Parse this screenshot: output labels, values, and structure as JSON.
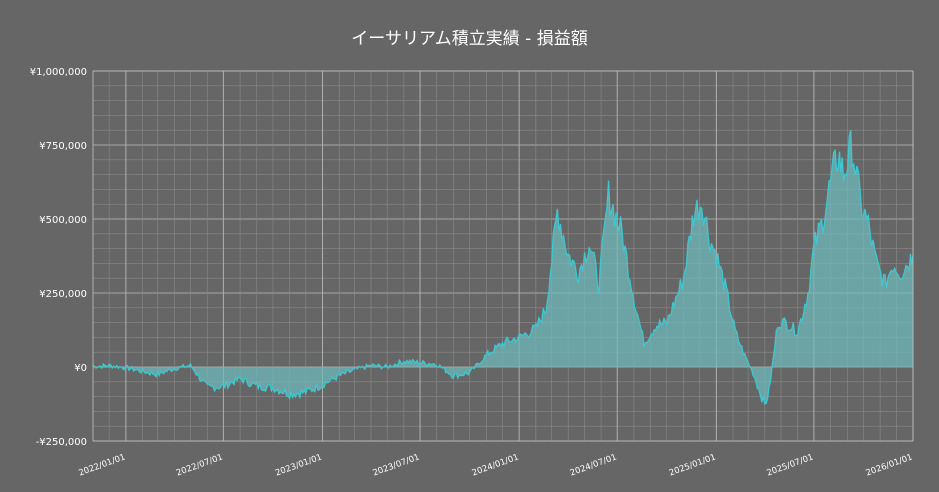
{
  "chart_data": {
    "type": "area",
    "title": "イーサリアム積立実績 - 損益額",
    "xlabel": "",
    "ylabel": "",
    "ylim": [
      -250000,
      1000000
    ],
    "xlim": [
      "2021-11-01",
      "2026-01-01"
    ],
    "yticks": [
      {
        "value": 1000000,
        "label": "¥1,000,000"
      },
      {
        "value": 750000,
        "label": "¥750,000"
      },
      {
        "value": 500000,
        "label": "¥500,000"
      },
      {
        "value": 250000,
        "label": "¥250,000"
      },
      {
        "value": 0,
        "label": "¥0"
      },
      {
        "value": -250000,
        "label": "-¥250,000"
      }
    ],
    "xticks": [
      {
        "date": "2022-01-01",
        "label": "2022/01/01"
      },
      {
        "date": "2022-07-01",
        "label": "2022/07/01"
      },
      {
        "date": "2023-01-01",
        "label": "2023/01/01"
      },
      {
        "date": "2023-07-01",
        "label": "2023/07/01"
      },
      {
        "date": "2024-01-01",
        "label": "2024/01/01"
      },
      {
        "date": "2024-07-01",
        "label": "2024/07/01"
      },
      {
        "date": "2025-01-01",
        "label": "2025/01/01"
      },
      {
        "date": "2025-07-01",
        "label": "2025/07/01"
      },
      {
        "date": "2026-01-01",
        "label": "2026/01/01"
      }
    ],
    "grid": true,
    "colors": {
      "background": "#666666",
      "line": "#3ec7cf",
      "fill": "#6fb9bc",
      "grid": "#8a8a8a"
    },
    "series": [
      {
        "x": [
          "2021-11-01",
          "2021-12-01",
          "2022-01-01",
          "2022-02-01",
          "2022-03-01",
          "2022-04-01",
          "2022-05-01",
          "2022-06-01",
          "2022-07-01",
          "2022-08-01",
          "2022-09-01",
          "2022-10-01",
          "2022-11-01",
          "2022-12-01",
          "2023-01-01",
          "2023-02-01",
          "2023-03-01",
          "2023-04-01",
          "2023-05-01",
          "2023-06-01",
          "2023-07-01",
          "2023-08-01",
          "2023-09-01",
          "2023-10-01",
          "2023-11-01",
          "2023-12-01",
          "2024-01-01",
          "2024-02-01",
          "2024-02-20",
          "2024-03-12",
          "2024-04-01",
          "2024-04-20",
          "2024-05-10",
          "2024-05-28",
          "2024-06-15",
          "2024-07-10",
          "2024-08-05",
          "2024-08-20",
          "2024-09-10",
          "2024-10-01",
          "2024-11-01",
          "2024-11-20",
          "2024-12-05",
          "2024-12-20",
          "2025-01-01",
          "2025-01-20",
          "2025-02-05",
          "2025-02-20",
          "2025-03-10",
          "2025-04-01",
          "2025-04-09",
          "2025-04-25",
          "2025-05-10",
          "2025-06-01",
          "2025-06-20",
          "2025-07-01",
          "2025-07-15",
          "2025-08-01",
          "2025-08-15",
          "2025-08-25",
          "2025-09-10",
          "2025-09-25",
          "2025-10-10",
          "2025-10-25",
          "2025-11-10",
          "2025-11-25",
          "2025-12-10",
          "2025-12-25",
          "2026-01-01"
        ],
        "y": [
          2000,
          5000,
          -2000,
          -15000,
          -25000,
          -5000,
          5000,
          -70000,
          -65000,
          -40000,
          -65000,
          -70000,
          -90000,
          -85000,
          -60000,
          -30000,
          -10000,
          5000,
          0,
          20000,
          15000,
          10000,
          -30000,
          -20000,
          40000,
          80000,
          100000,
          130000,
          200000,
          530000,
          380000,
          320000,
          420000,
          280000,
          580000,
          450000,
          200000,
          80000,
          140000,
          150000,
          300000,
          520000,
          560000,
          430000,
          380000,
          250000,
          120000,
          50000,
          -20000,
          -130000,
          -80000,
          150000,
          150000,
          120000,
          250000,
          400000,
          480000,
          620000,
          720000,
          650000,
          750000,
          560000,
          480000,
          350000,
          280000,
          350000,
          320000,
          360000,
          380000
        ]
      }
    ]
  }
}
